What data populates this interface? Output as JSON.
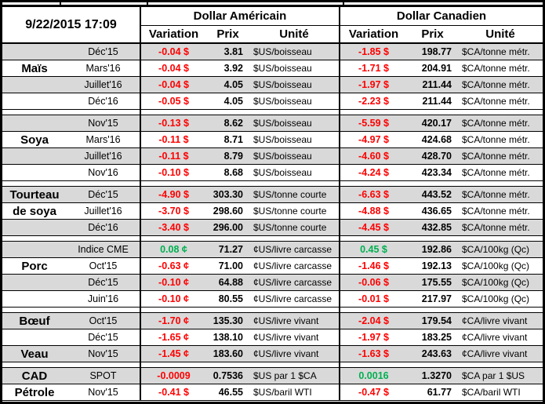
{
  "meta": {
    "timestamp": "9/22/2015 17:09"
  },
  "colors": {
    "negative": "#ff0000",
    "positive": "#00b050",
    "stripe": "#d9d9d9",
    "grid": "#000000"
  },
  "headers": {
    "us_title": "Dollar Américain",
    "ca_title": "Dollar Canadien",
    "variation": "Variation",
    "prix": "Prix",
    "unite": "Unité"
  },
  "groups": [
    {
      "name": "Maïs",
      "rows": [
        {
          "label": "",
          "month": "Déc'15",
          "us_var": "-0.04 $",
          "us_prix": "3.81",
          "us_unit": "$US/boisseau",
          "ca_var": "-1.85 $",
          "ca_prix": "198.77",
          "ca_unit": "$CA/tonne métr."
        },
        {
          "label": "Maïs",
          "month": "Mars'16",
          "us_var": "-0.04 $",
          "us_prix": "3.92",
          "us_unit": "$US/boisseau",
          "ca_var": "-1.71 $",
          "ca_prix": "204.91",
          "ca_unit": "$CA/tonne métr."
        },
        {
          "label": "",
          "month": "Juillet'16",
          "us_var": "-0.04 $",
          "us_prix": "4.05",
          "us_unit": "$US/boisseau",
          "ca_var": "-1.97 $",
          "ca_prix": "211.44",
          "ca_unit": "$CA/tonne métr."
        },
        {
          "label": "",
          "month": "Déc'16",
          "us_var": "-0.05 $",
          "us_prix": "4.05",
          "us_unit": "$US/boisseau",
          "ca_var": "-2.23 $",
          "ca_prix": "211.44",
          "ca_unit": "$CA/tonne métr."
        }
      ]
    },
    {
      "name": "Soya",
      "rows": [
        {
          "label": "",
          "month": "Nov'15",
          "us_var": "-0.13 $",
          "us_prix": "8.62",
          "us_unit": "$US/boisseau",
          "ca_var": "-5.59 $",
          "ca_prix": "420.17",
          "ca_unit": "$CA/tonne métr."
        },
        {
          "label": "Soya",
          "month": "Mars'16",
          "us_var": "-0.11 $",
          "us_prix": "8.71",
          "us_unit": "$US/boisseau",
          "ca_var": "-4.97 $",
          "ca_prix": "424.68",
          "ca_unit": "$CA/tonne métr."
        },
        {
          "label": "",
          "month": "Juillet'16",
          "us_var": "-0.11 $",
          "us_prix": "8.79",
          "us_unit": "$US/boisseau",
          "ca_var": "-4.60 $",
          "ca_prix": "428.70",
          "ca_unit": "$CA/tonne métr."
        },
        {
          "label": "",
          "month": "Nov'16",
          "us_var": "-0.10 $",
          "us_prix": "8.68",
          "us_unit": "$US/boisseau",
          "ca_var": "-4.24 $",
          "ca_prix": "423.34",
          "ca_unit": "$CA/tonne métr."
        }
      ]
    },
    {
      "name": "Tourteau de soya",
      "rows": [
        {
          "label": "Tourteau",
          "month": "Déc'15",
          "us_var": "-4.90 $",
          "us_prix": "303.30",
          "us_unit": "$US/tonne courte",
          "ca_var": "-6.63 $",
          "ca_prix": "443.52",
          "ca_unit": "$CA/tonne métr."
        },
        {
          "label": "de soya",
          "month": "Juillet'16",
          "us_var": "-3.70 $",
          "us_prix": "298.60",
          "us_unit": "$US/tonne courte",
          "ca_var": "-4.88 $",
          "ca_prix": "436.65",
          "ca_unit": "$CA/tonne métr."
        },
        {
          "label": "",
          "month": "Déc'16",
          "us_var": "-3.40 $",
          "us_prix": "296.00",
          "us_unit": "$US/tonne courte",
          "ca_var": "-4.45 $",
          "ca_prix": "432.85",
          "ca_unit": "$CA/tonne métr."
        }
      ]
    },
    {
      "name": "Porc",
      "rows": [
        {
          "label": "",
          "month": "Indice CME",
          "us_var": "0.08 ¢",
          "us_prix": "71.27",
          "us_unit": "¢US/livre carcasse",
          "ca_var": "0.45 $",
          "ca_prix": "192.86",
          "ca_unit": "$CA/100kg (Qc)"
        },
        {
          "label": "Porc",
          "month": "Oct'15",
          "us_var": "-0.63 ¢",
          "us_prix": "71.00",
          "us_unit": "¢US/livre carcasse",
          "ca_var": "-1.46 $",
          "ca_prix": "192.13",
          "ca_unit": "$CA/100kg (Qc)"
        },
        {
          "label": "",
          "month": "Déc'15",
          "us_var": "-0.10 ¢",
          "us_prix": "64.88",
          "us_unit": "¢US/livre carcasse",
          "ca_var": "-0.06 $",
          "ca_prix": "175.55",
          "ca_unit": "$CA/100kg (Qc)"
        },
        {
          "label": "",
          "month": "Juin'16",
          "us_var": "-0.10 ¢",
          "us_prix": "80.55",
          "us_unit": "¢US/livre carcasse",
          "ca_var": "-0.01 $",
          "ca_prix": "217.97",
          "ca_unit": "$CA/100kg (Qc)"
        }
      ]
    },
    {
      "name": "Bœuf / Veau",
      "rows": [
        {
          "label": "Bœuf",
          "month": "Oct'15",
          "us_var": "-1.70 ¢",
          "us_prix": "135.30",
          "us_unit": "¢US/livre vivant",
          "ca_var": "-2.04 $",
          "ca_prix": "179.54",
          "ca_unit": "¢CA/livre vivant"
        },
        {
          "label": "",
          "month": "Déc'15",
          "us_var": "-1.65 ¢",
          "us_prix": "138.10",
          "us_unit": "¢US/livre vivant",
          "ca_var": "-1.97 $",
          "ca_prix": "183.25",
          "ca_unit": "¢CA/livre vivant"
        },
        {
          "label": "Veau",
          "month": "Nov'15",
          "us_var": "-1.45 ¢",
          "us_prix": "183.60",
          "us_unit": "¢US/livre vivant",
          "ca_var": "-1.63 $",
          "ca_prix": "243.63",
          "ca_unit": "¢CA/livre vivant"
        }
      ]
    },
    {
      "name": "CAD / Pétrole",
      "rows": [
        {
          "label": "CAD",
          "month": "SPOT",
          "us_var": "-0.0009",
          "us_prix": "0.7536",
          "us_unit": "$US par 1 $CA",
          "ca_var": "0.0016",
          "ca_prix": "1.3270",
          "ca_unit": "$CA par 1 $US"
        },
        {
          "label": "Pétrole",
          "month": "Nov'15",
          "us_var": "-0.41 $",
          "us_prix": "46.55",
          "us_unit": "$US/baril WTI",
          "ca_var": "-0.47 $",
          "ca_prix": "61.77",
          "ca_unit": "$CA/baril WTI"
        }
      ]
    }
  ]
}
